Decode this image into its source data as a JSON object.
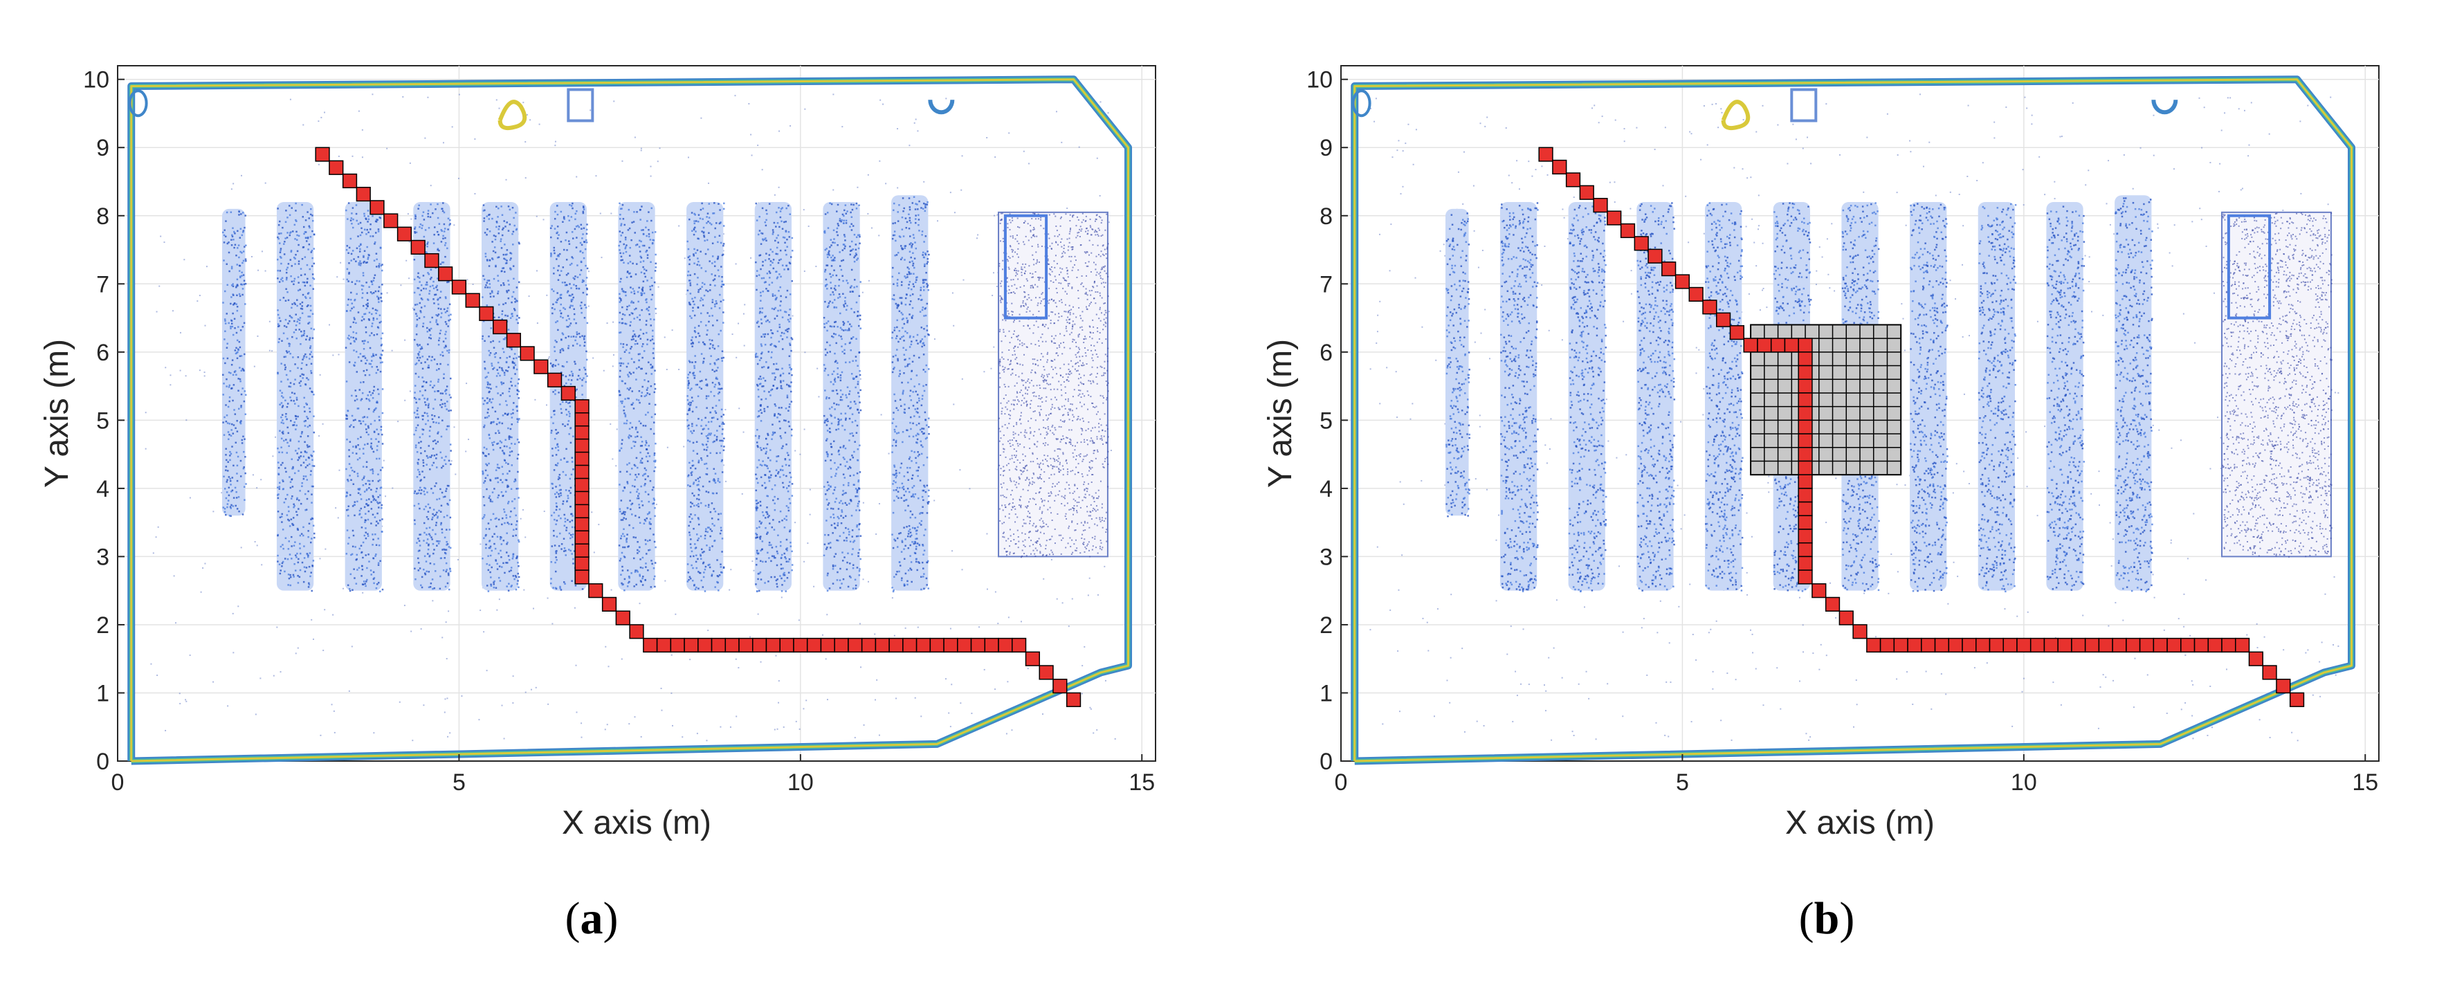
{
  "chart_data": [
    {
      "type": "scatter",
      "panel_label": "a",
      "xlabel": "X axis (m)",
      "ylabel": "Y axis (m)",
      "xlim": [
        0,
        15.2
      ],
      "ylim": [
        0,
        10.2
      ],
      "xticks": [
        "0",
        "5",
        "10",
        "15"
      ],
      "yticks": [
        "0",
        "1",
        "2",
        "3",
        "4",
        "5",
        "6",
        "7",
        "8",
        "9",
        "10"
      ],
      "grid": true,
      "series": [
        {
          "kind": "point-cloud-shelves",
          "color": "#4f7fe0",
          "values": [
            {
              "x": 1.7,
              "y0": 3.6,
              "y1": 8.1
            },
            {
              "x": 2.6,
              "y0": 2.5,
              "y1": 8.2
            },
            {
              "x": 3.6,
              "y0": 2.5,
              "y1": 8.2
            },
            {
              "x": 4.6,
              "y0": 2.5,
              "y1": 8.2
            },
            {
              "x": 5.6,
              "y0": 2.5,
              "y1": 8.2
            },
            {
              "x": 6.6,
              "y0": 2.5,
              "y1": 8.2
            },
            {
              "x": 7.6,
              "y0": 2.5,
              "y1": 8.2
            },
            {
              "x": 8.6,
              "y0": 2.5,
              "y1": 8.2
            },
            {
              "x": 9.6,
              "y0": 2.5,
              "y1": 8.2
            },
            {
              "x": 10.6,
              "y0": 2.5,
              "y1": 8.2
            },
            {
              "x": 11.6,
              "y0": 2.5,
              "y1": 8.3
            }
          ]
        },
        {
          "kind": "boundary",
          "color": "#d9c93a",
          "values": [
            [
              0.2,
              0.0
            ],
            [
              0.2,
              9.9
            ],
            [
              14.0,
              10.0
            ],
            [
              14.8,
              9.0
            ],
            [
              14.8,
              1.4
            ],
            [
              14.4,
              1.3
            ],
            [
              12.0,
              0.25
            ],
            [
              0.2,
              0.0
            ]
          ]
        },
        {
          "kind": "path",
          "color": "#e8322e",
          "values": [
            [
              3.0,
              8.9
            ],
            [
              6.8,
              5.2
            ],
            [
              6.8,
              2.7
            ],
            [
              7.8,
              1.7
            ],
            [
              13.2,
              1.7
            ],
            [
              14.0,
              0.9
            ]
          ]
        }
      ],
      "obstacle": null
    },
    {
      "type": "scatter",
      "panel_label": "b",
      "xlabel": "X axis (m)",
      "ylabel": "Y axis (m)",
      "xlim": [
        0,
        15.2
      ],
      "ylim": [
        0,
        10.2
      ],
      "xticks": [
        "0",
        "5",
        "10",
        "15"
      ],
      "yticks": [
        "0",
        "1",
        "2",
        "3",
        "4",
        "5",
        "6",
        "7",
        "8",
        "9",
        "10"
      ],
      "grid": true,
      "series": [
        {
          "kind": "point-cloud-shelves",
          "color": "#4f7fe0",
          "values": [
            {
              "x": 1.7,
              "y0": 3.6,
              "y1": 8.1
            },
            {
              "x": 2.6,
              "y0": 2.5,
              "y1": 8.2
            },
            {
              "x": 3.6,
              "y0": 2.5,
              "y1": 8.2
            },
            {
              "x": 4.6,
              "y0": 2.5,
              "y1": 8.2
            },
            {
              "x": 5.6,
              "y0": 2.5,
              "y1": 8.2
            },
            {
              "x": 6.6,
              "y0": 2.5,
              "y1": 8.2
            },
            {
              "x": 7.6,
              "y0": 2.5,
              "y1": 8.2
            },
            {
              "x": 8.6,
              "y0": 2.5,
              "y1": 8.2
            },
            {
              "x": 9.6,
              "y0": 2.5,
              "y1": 8.2
            },
            {
              "x": 10.6,
              "y0": 2.5,
              "y1": 8.2
            },
            {
              "x": 11.6,
              "y0": 2.5,
              "y1": 8.3
            }
          ]
        },
        {
          "kind": "boundary",
          "color": "#d9c93a",
          "values": [
            [
              0.2,
              0.0
            ],
            [
              0.2,
              9.9
            ],
            [
              14.0,
              10.0
            ],
            [
              14.8,
              9.0
            ],
            [
              14.8,
              1.4
            ],
            [
              14.4,
              1.3
            ],
            [
              12.0,
              0.25
            ],
            [
              0.2,
              0.0
            ]
          ]
        },
        {
          "kind": "path",
          "color": "#e8322e",
          "values": [
            [
              3.0,
              8.9
            ],
            [
              6.0,
              6.1
            ],
            [
              6.8,
              6.1
            ],
            [
              6.8,
              2.7
            ],
            [
              7.8,
              1.7
            ],
            [
              13.2,
              1.7
            ],
            [
              14.0,
              0.9
            ]
          ]
        }
      ],
      "obstacle": {
        "x0": 6.0,
        "x1": 8.2,
        "y0": 4.2,
        "y1": 6.4,
        "color": "#c8c8c8"
      }
    }
  ]
}
